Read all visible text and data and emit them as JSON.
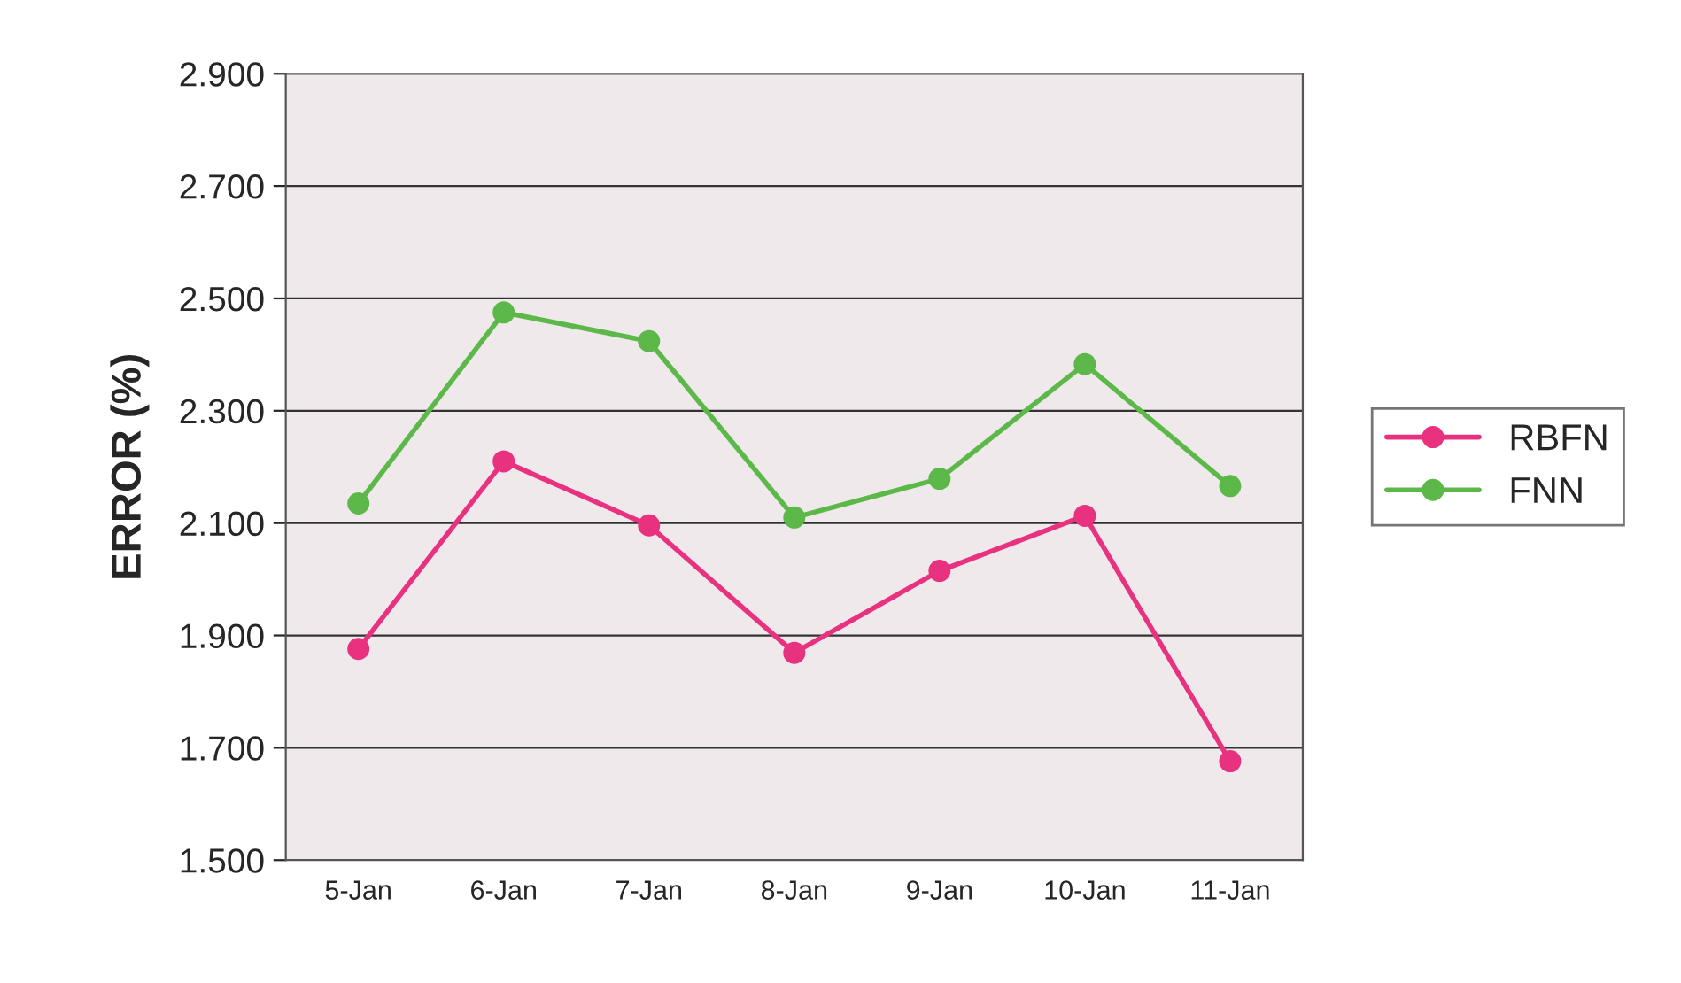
{
  "chart_data": {
    "type": "line",
    "ylabel": "ERROR (%)",
    "categories": [
      "5-Jan",
      "6-Jan",
      "7-Jan",
      "8-Jan",
      "9-Jan",
      "10-Jan",
      "11-Jan"
    ],
    "series": [
      {
        "name": "RBFN",
        "color": "#e8327f",
        "values": [
          1.876,
          2.21,
          2.096,
          1.869,
          2.015,
          2.113,
          1.676
        ]
      },
      {
        "name": "FNN",
        "color": "#5cb848",
        "values": [
          2.135,
          2.475,
          2.424,
          2.11,
          2.179,
          2.383,
          2.166
        ]
      }
    ],
    "ylim": [
      1.5,
      2.9
    ],
    "yticks": [
      {
        "value": 1.5,
        "label": "1.500"
      },
      {
        "value": 1.7,
        "label": "1.700"
      },
      {
        "value": 1.9,
        "label": "1.900"
      },
      {
        "value": 2.1,
        "label": "2.100"
      },
      {
        "value": 2.3,
        "label": "2.300"
      },
      {
        "value": 2.5,
        "label": "2.500"
      },
      {
        "value": 2.7,
        "label": "2.700"
      },
      {
        "value": 2.9,
        "label": "2.900"
      }
    ],
    "grid": "y",
    "legend": "right",
    "marker": "circle",
    "line_style": "solid"
  }
}
